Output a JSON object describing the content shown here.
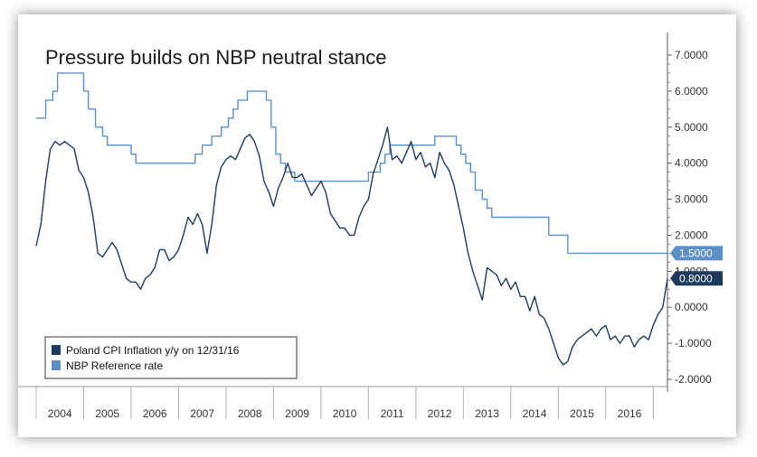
{
  "chart_data": {
    "type": "line",
    "title": "Pressure builds on NBP neutral stance",
    "xlabel": "",
    "ylabel": "",
    "x_range": [
      2004.0,
      2017.3
    ],
    "ylim": [
      -2.0,
      7.0
    ],
    "y_ticks": [
      "7.0000",
      "6.0000",
      "5.0000",
      "4.0000",
      "3.0000",
      "2.0000",
      "1.0000",
      "0.0000",
      "-1.0000",
      "-2.0000"
    ],
    "x_ticks": [
      "2004",
      "2005",
      "2006",
      "2007",
      "2008",
      "2009",
      "2010",
      "2011",
      "2012",
      "2013",
      "2014",
      "2015",
      "2016"
    ],
    "grid": false,
    "legend_position": "bottom-left",
    "series": [
      {
        "name": "Poland CPI Inflation y/y on 12/31/16",
        "color": "#1f3a5f",
        "last_value_label": "0.8000",
        "points": [
          [
            2004.0,
            1.7
          ],
          [
            2004.1,
            2.3
          ],
          [
            2004.2,
            3.5
          ],
          [
            2004.3,
            4.4
          ],
          [
            2004.4,
            4.6
          ],
          [
            2004.5,
            4.5
          ],
          [
            2004.6,
            4.6
          ],
          [
            2004.7,
            4.5
          ],
          [
            2004.8,
            4.4
          ],
          [
            2004.9,
            3.8
          ],
          [
            2005.0,
            3.6
          ],
          [
            2005.1,
            3.2
          ],
          [
            2005.2,
            2.5
          ],
          [
            2005.3,
            1.5
          ],
          [
            2005.4,
            1.4
          ],
          [
            2005.5,
            1.6
          ],
          [
            2005.6,
            1.8
          ],
          [
            2005.7,
            1.6
          ],
          [
            2005.8,
            1.2
          ],
          [
            2005.9,
            0.8
          ],
          [
            2006.0,
            0.7
          ],
          [
            2006.1,
            0.7
          ],
          [
            2006.2,
            0.5
          ],
          [
            2006.3,
            0.8
          ],
          [
            2006.4,
            0.9
          ],
          [
            2006.5,
            1.1
          ],
          [
            2006.6,
            1.6
          ],
          [
            2006.7,
            1.6
          ],
          [
            2006.8,
            1.3
          ],
          [
            2006.9,
            1.4
          ],
          [
            2007.0,
            1.6
          ],
          [
            2007.1,
            2.0
          ],
          [
            2007.2,
            2.5
          ],
          [
            2007.3,
            2.3
          ],
          [
            2007.4,
            2.6
          ],
          [
            2007.5,
            2.3
          ],
          [
            2007.6,
            1.5
          ],
          [
            2007.7,
            2.3
          ],
          [
            2007.8,
            3.4
          ],
          [
            2007.9,
            3.9
          ],
          [
            2008.0,
            4.1
          ],
          [
            2008.1,
            4.2
          ],
          [
            2008.2,
            4.1
          ],
          [
            2008.3,
            4.4
          ],
          [
            2008.4,
            4.7
          ],
          [
            2008.5,
            4.8
          ],
          [
            2008.6,
            4.6
          ],
          [
            2008.7,
            4.2
          ],
          [
            2008.8,
            3.5
          ],
          [
            2008.9,
            3.2
          ],
          [
            2009.0,
            2.8
          ],
          [
            2009.1,
            3.3
          ],
          [
            2009.2,
            3.6
          ],
          [
            2009.3,
            4.0
          ],
          [
            2009.4,
            3.6
          ],
          [
            2009.5,
            3.6
          ],
          [
            2009.6,
            3.7
          ],
          [
            2009.7,
            3.4
          ],
          [
            2009.8,
            3.1
          ],
          [
            2009.9,
            3.3
          ],
          [
            2010.0,
            3.5
          ],
          [
            2010.1,
            3.2
          ],
          [
            2010.2,
            2.6
          ],
          [
            2010.3,
            2.4
          ],
          [
            2010.4,
            2.2
          ],
          [
            2010.5,
            2.2
          ],
          [
            2010.6,
            2.0
          ],
          [
            2010.7,
            2.0
          ],
          [
            2010.8,
            2.5
          ],
          [
            2010.9,
            2.8
          ],
          [
            2011.0,
            3.0
          ],
          [
            2011.1,
            3.7
          ],
          [
            2011.2,
            4.1
          ],
          [
            2011.3,
            4.5
          ],
          [
            2011.4,
            5.0
          ],
          [
            2011.5,
            4.1
          ],
          [
            2011.6,
            4.2
          ],
          [
            2011.7,
            4.0
          ],
          [
            2011.8,
            4.3
          ],
          [
            2011.9,
            4.6
          ],
          [
            2012.0,
            4.1
          ],
          [
            2012.1,
            4.3
          ],
          [
            2012.2,
            3.9
          ],
          [
            2012.3,
            4.0
          ],
          [
            2012.4,
            3.6
          ],
          [
            2012.5,
            4.3
          ],
          [
            2012.6,
            4.0
          ],
          [
            2012.7,
            3.8
          ],
          [
            2012.8,
            3.4
          ],
          [
            2012.9,
            2.8
          ],
          [
            2013.0,
            2.2
          ],
          [
            2013.1,
            1.5
          ],
          [
            2013.2,
            1.0
          ],
          [
            2013.3,
            0.6
          ],
          [
            2013.4,
            0.2
          ],
          [
            2013.5,
            1.1
          ],
          [
            2013.6,
            1.0
          ],
          [
            2013.7,
            0.9
          ],
          [
            2013.8,
            0.6
          ],
          [
            2013.9,
            0.8
          ],
          [
            2014.0,
            0.5
          ],
          [
            2014.1,
            0.7
          ],
          [
            2014.2,
            0.3
          ],
          [
            2014.3,
            0.3
          ],
          [
            2014.4,
            -0.1
          ],
          [
            2014.5,
            0.3
          ],
          [
            2014.6,
            -0.2
          ],
          [
            2014.7,
            -0.3
          ],
          [
            2014.8,
            -0.6
          ],
          [
            2014.9,
            -1.0
          ],
          [
            2015.0,
            -1.4
          ],
          [
            2015.1,
            -1.6
          ],
          [
            2015.2,
            -1.5
          ],
          [
            2015.3,
            -1.1
          ],
          [
            2015.4,
            -0.9
          ],
          [
            2015.5,
            -0.8
          ],
          [
            2015.6,
            -0.7
          ],
          [
            2015.7,
            -0.6
          ],
          [
            2015.8,
            -0.8
          ],
          [
            2015.9,
            -0.6
          ],
          [
            2016.0,
            -0.5
          ],
          [
            2016.1,
            -0.9
          ],
          [
            2016.2,
            -0.8
          ],
          [
            2016.3,
            -1.0
          ],
          [
            2016.4,
            -0.8
          ],
          [
            2016.5,
            -0.8
          ],
          [
            2016.6,
            -1.1
          ],
          [
            2016.7,
            -0.9
          ],
          [
            2016.8,
            -0.8
          ],
          [
            2016.9,
            -0.9
          ],
          [
            2017.0,
            -0.5
          ],
          [
            2017.1,
            -0.2
          ],
          [
            2017.2,
            0.0
          ],
          [
            2017.3,
            0.8
          ]
        ]
      },
      {
        "name": "NBP Reference rate",
        "color": "#5b8fc7",
        "last_value_label": "1.5000",
        "points": [
          [
            2004.0,
            5.25
          ],
          [
            2004.2,
            5.25
          ],
          [
            2004.2,
            5.75
          ],
          [
            2004.35,
            5.75
          ],
          [
            2004.35,
            6.0
          ],
          [
            2004.45,
            6.0
          ],
          [
            2004.45,
            6.5
          ],
          [
            2005.0,
            6.5
          ],
          [
            2005.0,
            6.0
          ],
          [
            2005.1,
            6.0
          ],
          [
            2005.1,
            5.5
          ],
          [
            2005.25,
            5.5
          ],
          [
            2005.25,
            5.0
          ],
          [
            2005.4,
            5.0
          ],
          [
            2005.4,
            4.75
          ],
          [
            2005.5,
            4.75
          ],
          [
            2005.5,
            4.5
          ],
          [
            2006.0,
            4.5
          ],
          [
            2006.0,
            4.25
          ],
          [
            2006.1,
            4.25
          ],
          [
            2006.1,
            4.0
          ],
          [
            2007.35,
            4.0
          ],
          [
            2007.35,
            4.25
          ],
          [
            2007.5,
            4.25
          ],
          [
            2007.5,
            4.5
          ],
          [
            2007.7,
            4.5
          ],
          [
            2007.7,
            4.75
          ],
          [
            2007.9,
            4.75
          ],
          [
            2007.9,
            5.0
          ],
          [
            2008.05,
            5.0
          ],
          [
            2008.05,
            5.25
          ],
          [
            2008.15,
            5.25
          ],
          [
            2008.15,
            5.5
          ],
          [
            2008.25,
            5.5
          ],
          [
            2008.25,
            5.75
          ],
          [
            2008.45,
            5.75
          ],
          [
            2008.45,
            6.0
          ],
          [
            2008.85,
            6.0
          ],
          [
            2008.85,
            5.75
          ],
          [
            2008.95,
            5.75
          ],
          [
            2008.95,
            5.0
          ],
          [
            2009.05,
            5.0
          ],
          [
            2009.05,
            4.25
          ],
          [
            2009.15,
            4.25
          ],
          [
            2009.15,
            4.0
          ],
          [
            2009.25,
            4.0
          ],
          [
            2009.25,
            3.75
          ],
          [
            2009.45,
            3.75
          ],
          [
            2009.45,
            3.5
          ],
          [
            2011.0,
            3.5
          ],
          [
            2011.0,
            3.75
          ],
          [
            2011.25,
            3.75
          ],
          [
            2011.25,
            4.0
          ],
          [
            2011.35,
            4.0
          ],
          [
            2011.35,
            4.25
          ],
          [
            2011.45,
            4.25
          ],
          [
            2011.45,
            4.5
          ],
          [
            2012.4,
            4.5
          ],
          [
            2012.4,
            4.75
          ],
          [
            2012.85,
            4.75
          ],
          [
            2012.85,
            4.5
          ],
          [
            2012.95,
            4.5
          ],
          [
            2012.95,
            4.25
          ],
          [
            2013.05,
            4.25
          ],
          [
            2013.05,
            4.0
          ],
          [
            2013.15,
            4.0
          ],
          [
            2013.15,
            3.75
          ],
          [
            2013.25,
            3.75
          ],
          [
            2013.25,
            3.25
          ],
          [
            2013.4,
            3.25
          ],
          [
            2013.4,
            3.0
          ],
          [
            2013.5,
            3.0
          ],
          [
            2013.5,
            2.75
          ],
          [
            2013.6,
            2.75
          ],
          [
            2013.6,
            2.5
          ],
          [
            2014.8,
            2.5
          ],
          [
            2014.8,
            2.0
          ],
          [
            2015.2,
            2.0
          ],
          [
            2015.2,
            1.5
          ],
          [
            2017.3,
            1.5
          ]
        ]
      }
    ]
  }
}
